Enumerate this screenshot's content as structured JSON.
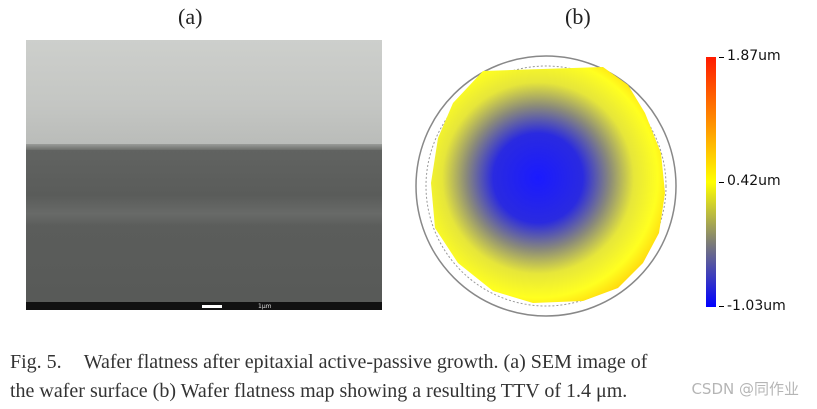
{
  "panels": {
    "a_label": "(a)",
    "b_label": "(b)"
  },
  "sem": {
    "scale_text": "1μm"
  },
  "colorbar": {
    "max_label": "1.87um",
    "mid_label": "0.42um",
    "min_label": "-1.03um",
    "colors": [
      "#ff1a00",
      "#ff8a00",
      "#ffff00",
      "#7a7a7a",
      "#0000ff"
    ]
  },
  "caption": {
    "fig": "Fig. 5.",
    "line1": "Wafer flatness after epitaxial active-passive growth. (a) SEM image of",
    "line2": "the wafer surface (b) Wafer flatness map showing a resulting TTV of 1.4 μm."
  },
  "watermark": "CSDN @同作业"
}
